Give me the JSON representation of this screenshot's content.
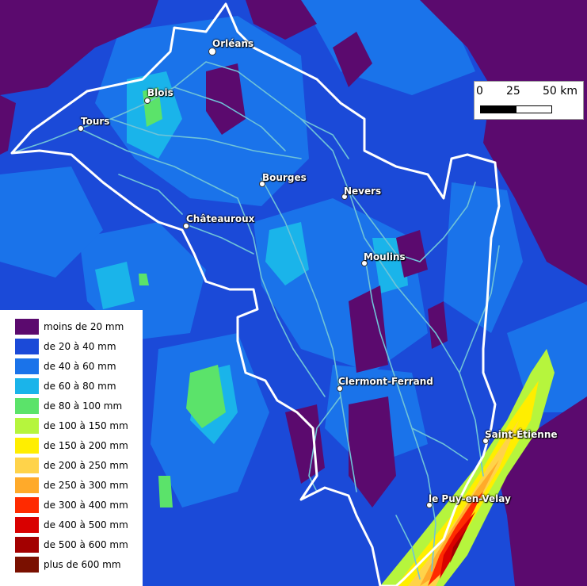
{
  "scale_bar": {
    "labels": [
      "0",
      "25",
      "50 km"
    ]
  },
  "cities": [
    {
      "name": "Orléans",
      "size": "big"
    },
    {
      "name": "Blois"
    },
    {
      "name": "Tours"
    },
    {
      "name": "Bourges"
    },
    {
      "name": "Nevers"
    },
    {
      "name": "Châteauroux"
    },
    {
      "name": "Moulins"
    },
    {
      "name": "Clermont-Ferrand"
    },
    {
      "name": "Saint-Étienne"
    },
    {
      "name": "le Puy-en-Velay"
    }
  ],
  "legend": [
    {
      "label": "moins de 20 mm",
      "color": "#5b0a6e"
    },
    {
      "label": "de 20 à 40 mm",
      "color": "#1b4ad8"
    },
    {
      "label": "de 40 à 60 mm",
      "color": "#1a73ea"
    },
    {
      "label": "de 60 à 80 mm",
      "color": "#1ab4ea"
    },
    {
      "label": "de 80 à 100 mm",
      "color": "#5be36a"
    },
    {
      "label": "de 100 à 150 mm",
      "color": "#b6f53d"
    },
    {
      "label": "de 150 à 200 mm",
      "color": "#ffee00"
    },
    {
      "label": "de 200 à 250 mm",
      "color": "#ffd34a"
    },
    {
      "label": "de 250 à 300 mm",
      "color": "#ffaa2a"
    },
    {
      "label": "de 300 à 400 mm",
      "color": "#ff2a00"
    },
    {
      "label": "de 400 à 500 mm",
      "color": "#d90000"
    },
    {
      "label": "de 500 à 600 mm",
      "color": "#a30000"
    },
    {
      "label": "plus de 600 mm",
      "color": "#7a1000"
    }
  ]
}
